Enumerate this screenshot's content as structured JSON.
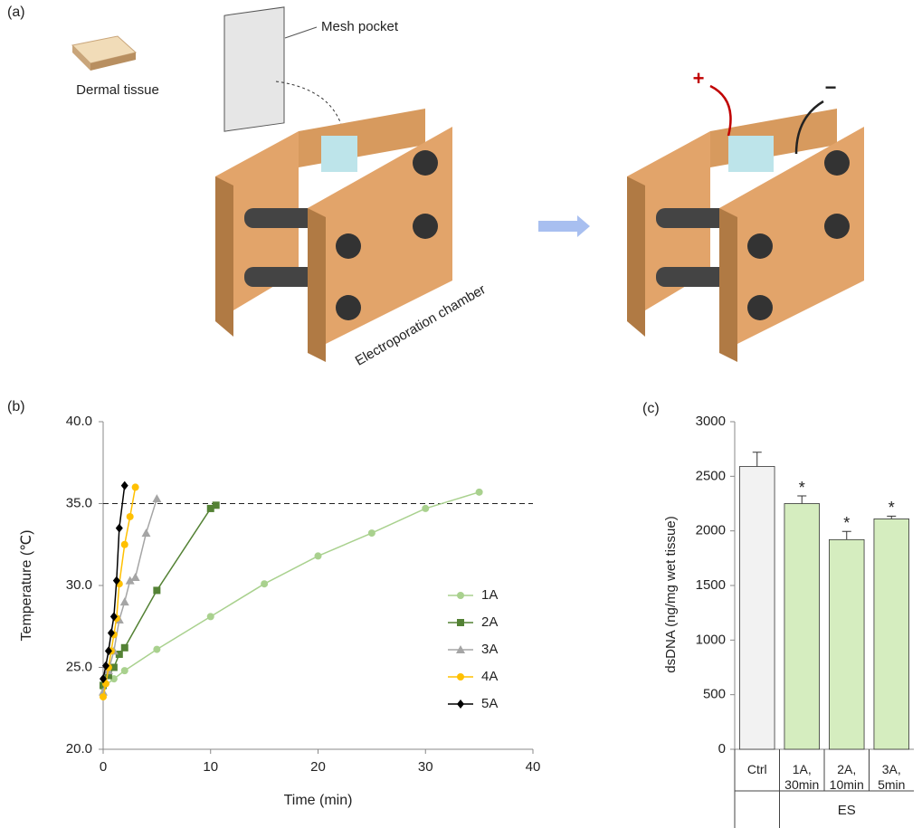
{
  "panel_a": {
    "panel_label": "(a)",
    "tissue_label": "Dermal tissue",
    "mesh_label": "Mesh pocket",
    "chamber_label": "Electroporation chamber",
    "plus": "+",
    "minus": "−"
  },
  "chart_data": [
    {
      "type": "line",
      "panel_label": "(b)",
      "x_label": "Time (min)",
      "y_label": "Temperature (℃)",
      "xlim": [
        0,
        40
      ],
      "xticks": [
        0,
        10,
        20,
        30,
        40
      ],
      "ylim": [
        20,
        40
      ],
      "yticks": [
        {
          "value": 20,
          "label": "20.0"
        },
        {
          "value": 25,
          "label": "25.0"
        },
        {
          "value": 30,
          "label": "30.0"
        },
        {
          "value": 35,
          "label": "35.0"
        },
        {
          "value": 40,
          "label": "40.0"
        }
      ],
      "reference_line": 35,
      "legend": "right",
      "series": [
        {
          "name": "1A",
          "color": "#a9d18e",
          "marker": "circle",
          "x": [
            0,
            1,
            2,
            5,
            10,
            15,
            20,
            25,
            30,
            35
          ],
          "values": [
            23.8,
            24.3,
            24.8,
            26.1,
            28.1,
            30.1,
            31.8,
            33.2,
            34.7,
            35.7
          ]
        },
        {
          "name": "2A",
          "color": "#548235",
          "marker": "square",
          "x": [
            0,
            0.5,
            1,
            1.5,
            2,
            5,
            10,
            10.5
          ],
          "values": [
            23.9,
            24.5,
            25.0,
            25.8,
            26.2,
            29.7,
            34.7,
            34.9
          ]
        },
        {
          "name": "3A",
          "color": "#a5a5a5",
          "marker": "triangle",
          "x": [
            0,
            0.5,
            1,
            1.5,
            2,
            2.5,
            3,
            4,
            5
          ],
          "values": [
            23.5,
            24.8,
            26.0,
            27.9,
            29.0,
            30.3,
            30.5,
            33.2,
            35.3
          ]
        },
        {
          "name": "4A",
          "color": "#ffc000",
          "marker": "circle",
          "x": [
            0,
            0.25,
            0.5,
            0.75,
            1,
            1.25,
            1.5,
            2,
            2.5,
            3
          ],
          "values": [
            23.2,
            24.0,
            25.0,
            26.0,
            27.0,
            28.0,
            30.1,
            32.5,
            34.2,
            36.0
          ]
        },
        {
          "name": "5A",
          "color": "#000000",
          "marker": "diamond",
          "x": [
            0,
            0.25,
            0.5,
            0.75,
            1,
            1.25,
            1.5,
            2
          ],
          "values": [
            24.3,
            25.1,
            26.0,
            27.1,
            28.1,
            30.3,
            33.5,
            36.1
          ]
        }
      ]
    },
    {
      "type": "bar",
      "panel_label": "(c)",
      "y_label": "dsDNA (ng/mg wet tissue)",
      "ylim": [
        0,
        3000
      ],
      "yticks": [
        0,
        500,
        1000,
        1500,
        2000,
        2500,
        3000
      ],
      "categories": [
        "Ctrl",
        "1A, 30min",
        "2A, 10min",
        "3A, 5min"
      ],
      "values": [
        2590,
        2250,
        1920,
        2110
      ],
      "errors": [
        130,
        70,
        75,
        25
      ],
      "colors": [
        "#f2f2f2",
        "#d5edbf",
        "#d5edbf",
        "#d5edbf"
      ],
      "significance": [
        null,
        "*",
        "*",
        "*"
      ],
      "group_label": "ES"
    }
  ]
}
